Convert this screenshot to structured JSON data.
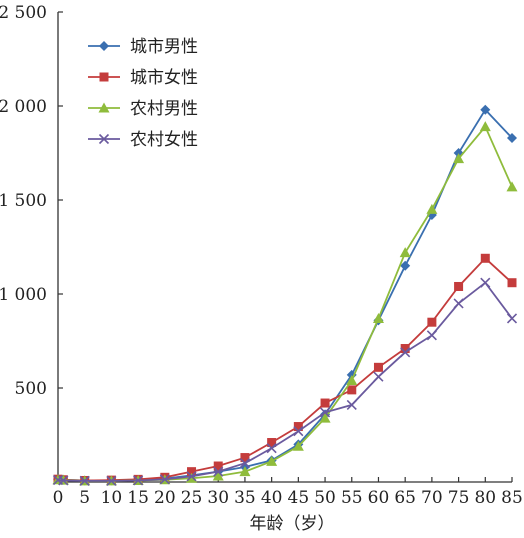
{
  "chart_data": {
    "type": "line",
    "xlabel": "年龄（岁）",
    "ylabel": "",
    "xlim": [
      0,
      85
    ],
    "ylim": [
      0,
      2500
    ],
    "x_ticks": [
      0,
      5,
      10,
      15,
      20,
      25,
      30,
      35,
      40,
      45,
      50,
      55,
      60,
      65,
      70,
      75,
      80,
      85
    ],
    "x_tick_labels": [
      "0",
      "5",
      "10",
      "15",
      "20",
      "25",
      "30",
      "35",
      "40",
      "45",
      "50",
      "55",
      "60",
      "65",
      "70",
      "75",
      "80",
      "85"
    ],
    "y_ticks": [
      0,
      500,
      1000,
      1500,
      2000,
      2500
    ],
    "y_tick_labels": [
      "",
      "500",
      "1 000",
      "1 500",
      "2 000",
      "2 500"
    ],
    "grid": false,
    "legend_position": "top-left",
    "x": [
      0,
      1,
      5,
      10,
      15,
      20,
      25,
      30,
      35,
      40,
      45,
      50,
      55,
      60,
      65,
      70,
      75,
      80,
      85
    ],
    "series": [
      {
        "name": "城市男性",
        "color": "#3a6fb0",
        "marker": "diamond",
        "values": [
          15,
          12,
          8,
          8,
          10,
          18,
          35,
          55,
          80,
          115,
          200,
          360,
          570,
          860,
          1150,
          1420,
          1750,
          1980,
          1830
        ]
      },
      {
        "name": "城市女性",
        "color": "#c43c3c",
        "marker": "square",
        "values": [
          15,
          12,
          8,
          10,
          14,
          25,
          55,
          85,
          130,
          210,
          295,
          420,
          490,
          610,
          710,
          850,
          1040,
          1190,
          1060
        ]
      },
      {
        "name": "农村男性",
        "color": "#8fbc3c",
        "marker": "triangle",
        "values": [
          12,
          10,
          6,
          6,
          8,
          12,
          20,
          32,
          55,
          110,
          190,
          340,
          540,
          870,
          1220,
          1450,
          1720,
          1890,
          1570
        ]
      },
      {
        "name": "农村女性",
        "color": "#6a5a9e",
        "marker": "x",
        "values": [
          10,
          8,
          6,
          6,
          8,
          14,
          30,
          55,
          100,
          180,
          270,
          370,
          410,
          560,
          690,
          780,
          950,
          1060,
          870
        ]
      }
    ]
  }
}
